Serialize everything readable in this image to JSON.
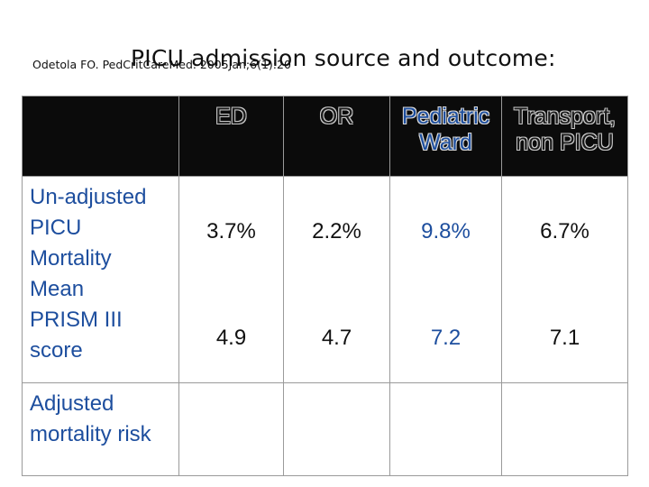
{
  "slide": {
    "title": "PICU admission source and outcome:",
    "citation": "Odetola FO. PedCritCareMed. 2005Jan;6(1):20"
  },
  "table": {
    "headers": [
      "",
      "ED",
      "OR",
      "Pediatric Ward",
      "Transport, non PICU"
    ],
    "header_lines": {
      "ped_1": "Pediatric",
      "ped_2": "Ward",
      "trans_1": "Transport,",
      "trans_2": "non PICU"
    },
    "row_labels": {
      "line1": "Un-adjusted",
      "line2": "PICU",
      "line3": "Mortality",
      "line4": "Mean",
      "line5": "PRISM III",
      "line6": "score",
      "line7": "Adjusted",
      "line8": "mortality risk"
    },
    "rows": [
      {
        "label": "Un-adjusted PICU Mortality",
        "values": [
          "3.7%",
          "2.2%",
          "9.8%",
          "6.7%"
        ]
      },
      {
        "label": "Mean PRISM III score",
        "values": [
          "4.9",
          "4.7",
          "7.2",
          "7.1"
        ]
      },
      {
        "label": "Adjusted mortality risk",
        "values": [
          "",
          "",
          "",
          ""
        ]
      }
    ],
    "colors": {
      "text_blue": "#1d4e9e",
      "header_bg": "#0b0b0b"
    }
  }
}
